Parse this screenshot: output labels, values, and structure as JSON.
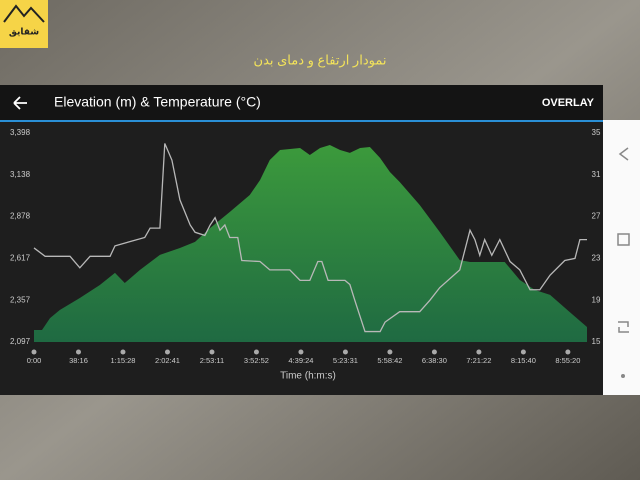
{
  "logo_text": "شقایق",
  "caption": "نمودار ارتفاع و دمای بدن",
  "overlay_button": "OVERLAY",
  "chart_data": {
    "type": "area",
    "title": "Elevation (m) & Temperature (°C)",
    "xlabel": "Time (h:m:s)",
    "xlim": [
      0,
      12.43
    ],
    "xticks": [
      {
        "value": 0,
        "label": "0:00"
      },
      {
        "value": 1,
        "label": "38:16"
      },
      {
        "value": 2,
        "label": "1:15:28"
      },
      {
        "value": 3,
        "label": "2:02:41"
      },
      {
        "value": 4,
        "label": "2:53:11"
      },
      {
        "value": 5,
        "label": "3:52:52"
      },
      {
        "value": 6,
        "label": "4:39:24"
      },
      {
        "value": 7,
        "label": "5:23:31"
      },
      {
        "value": 8,
        "label": "5:58:42"
      },
      {
        "value": 9,
        "label": "6:38:30"
      },
      {
        "value": 10,
        "label": "7:21:22"
      },
      {
        "value": 11,
        "label": "8:15:40"
      },
      {
        "value": 12,
        "label": "8:55:20"
      }
    ],
    "ylim": [
      2097,
      3398
    ],
    "yticks": [
      {
        "value": 3398,
        "label": "3,398"
      },
      {
        "value": 3138,
        "label": "3,138"
      },
      {
        "value": 2878,
        "label": "2,878"
      },
      {
        "value": 2617,
        "label": "2,617"
      },
      {
        "value": 2357,
        "label": "2,357"
      },
      {
        "value": 2097,
        "label": "2,097"
      }
    ],
    "y2lim": [
      15,
      35
    ],
    "y2ticks": [
      35,
      31,
      27,
      23,
      19,
      15
    ],
    "series": [
      {
        "type": "area",
        "color": "#3c9a3c",
        "x": [
          0,
          0.18,
          0.36,
          0.58,
          1.03,
          1.48,
          1.82,
          2.04,
          2.38,
          2.83,
          3.28,
          3.62,
          3.96,
          4.4,
          4.85,
          5.08,
          5.3,
          5.53,
          5.98,
          6.2,
          6.43,
          6.65,
          6.88,
          7.1,
          7.33,
          7.55,
          7.78,
          8.0,
          8.22,
          8.67,
          9.12,
          9.57,
          9.8,
          10.25,
          10.58,
          10.92,
          11.26,
          11.6,
          12.04,
          12.43
        ],
        "values": [
          2172,
          2172,
          2246,
          2296,
          2371,
          2452,
          2527,
          2464,
          2545,
          2639,
          2682,
          2720,
          2807,
          2906,
          3012,
          3105,
          3230,
          3292,
          3305,
          3261,
          3305,
          3323,
          3292,
          3274,
          3305,
          3311,
          3242,
          3155,
          3093,
          2950,
          2782,
          2607,
          2595,
          2595,
          2595,
          2483,
          2421,
          2390,
          2284,
          2190
        ]
      },
      {
        "type": "line",
        "axis": "y2",
        "color": "#b8b8b8",
        "x": [
          0,
          0.25,
          0.81,
          1.03,
          1.26,
          1.71,
          1.82,
          2.49,
          2.61,
          2.83,
          2.94,
          3.1,
          3.28,
          3.51,
          3.62,
          3.84,
          3.96,
          4.07,
          4.18,
          4.29,
          4.4,
          4.58,
          4.67,
          5.08,
          5.3,
          5.75,
          5.98,
          6.2,
          6.38,
          6.47,
          6.61,
          6.99,
          7.1,
          7.21,
          7.44,
          7.78,
          7.89,
          8.22,
          8.67,
          8.9,
          9.12,
          9.57,
          9.8,
          9.91,
          10.02,
          10.13,
          10.29,
          10.47,
          10.7,
          10.92,
          11.15,
          11.37,
          11.6,
          11.93,
          12.16,
          12.27,
          12.43
        ],
        "values": [
          24.0,
          23.2,
          23.2,
          22.1,
          23.2,
          23.2,
          24.2,
          25.0,
          25.9,
          25.9,
          34.0,
          32.4,
          28.6,
          26.2,
          25.5,
          25.2,
          26.2,
          26.9,
          25.7,
          26.2,
          25.0,
          25.0,
          22.8,
          22.7,
          21.9,
          21.9,
          20.9,
          20.9,
          22.7,
          22.7,
          20.9,
          20.9,
          20.5,
          19.0,
          16.0,
          16.0,
          16.9,
          17.9,
          17.9,
          19.0,
          20.2,
          21.9,
          25.7,
          24.8,
          23.3,
          24.8,
          23.3,
          24.8,
          22.7,
          21.9,
          20.0,
          20.0,
          21.4,
          22.8,
          23.0,
          24.8,
          24.8
        ]
      }
    ]
  }
}
